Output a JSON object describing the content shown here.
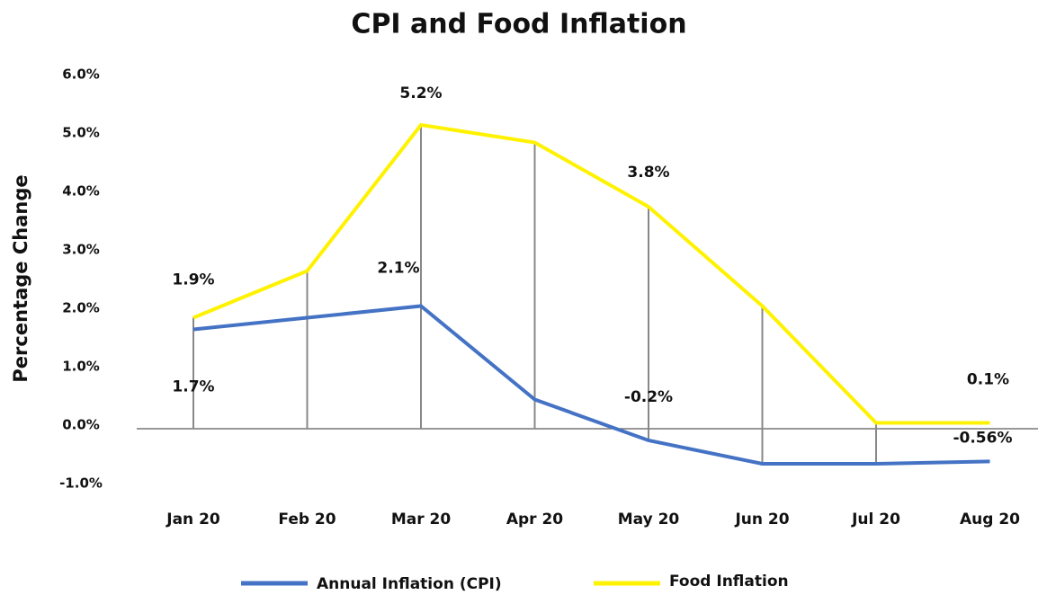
{
  "chart_data": {
    "type": "line",
    "title": "CPI and Food Inflation",
    "y_label": "Percentage Change",
    "categories": [
      "Jan 20",
      "Feb 20",
      "Mar 20",
      "Apr 20",
      "May 20",
      "Jun 20",
      "Jul 20",
      "Aug 20"
    ],
    "series": [
      {
        "name": "Annual Inflation (CPI)",
        "color": "#4472c4",
        "values": [
          1.7,
          1.9,
          2.1,
          0.5,
          -0.2,
          -0.6,
          -0.6,
          -0.56
        ],
        "value_labels": [
          "1.7%",
          null,
          "2.1%",
          null,
          "-0.2%",
          null,
          null,
          "-0.56%"
        ]
      },
      {
        "name": "Food Inflation",
        "color": "#fff200",
        "values": [
          1.9,
          2.7,
          5.2,
          4.9,
          3.8,
          2.1,
          0.1,
          0.1
        ],
        "value_labels": [
          "1.9%",
          null,
          "5.2%",
          null,
          "3.8%",
          null,
          null,
          "0.1%"
        ]
      }
    ],
    "ylim": [
      -1.0,
      6.0
    ],
    "yticks": [
      {
        "value": -1.0,
        "label": "-1.0%"
      },
      {
        "value": 0.0,
        "label": "0.0%"
      },
      {
        "value": 1.0,
        "label": "1.0%"
      },
      {
        "value": 2.0,
        "label": "2.0%"
      },
      {
        "value": 3.0,
        "label": "3.0%"
      },
      {
        "value": 4.0,
        "label": "4.0%"
      },
      {
        "value": 5.0,
        "label": "5.0%"
      },
      {
        "value": 6.0,
        "label": "6.0%"
      }
    ],
    "legend": "bottom"
  }
}
